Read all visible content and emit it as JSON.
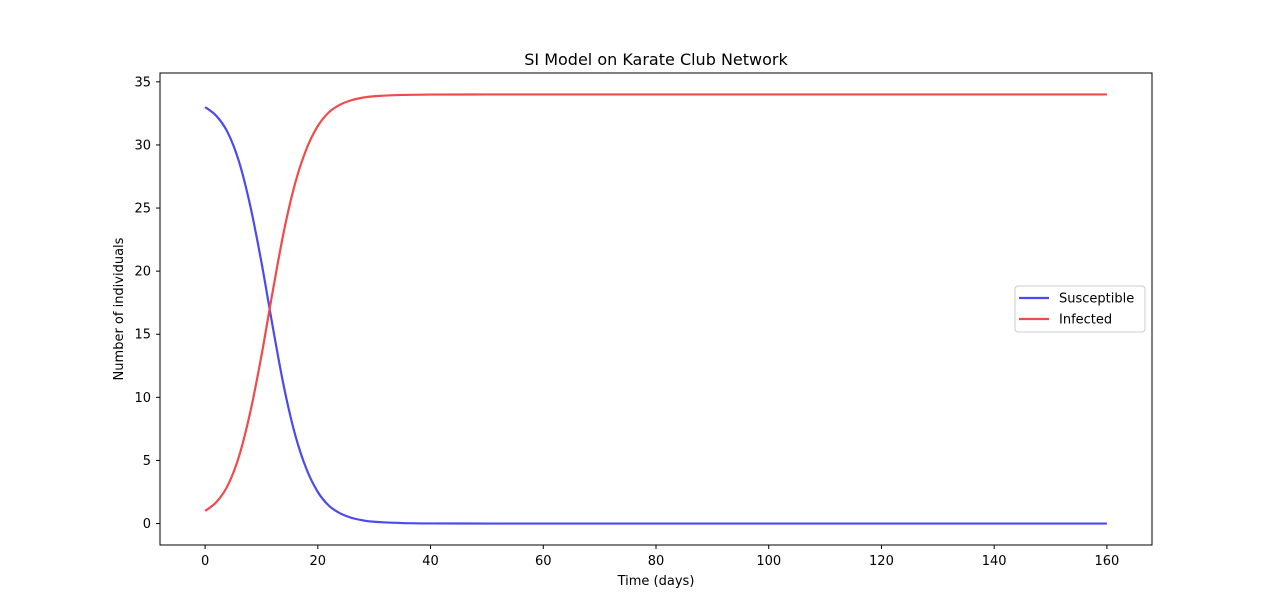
{
  "chart_data": {
    "type": "line",
    "title": "SI Model on Karate Club Network",
    "xlabel": "Time (days)",
    "ylabel": "Number of individuals",
    "xlim": [
      -8,
      168
    ],
    "ylim": [
      -1.7,
      35.7
    ],
    "xticks": [
      0,
      20,
      40,
      60,
      80,
      100,
      120,
      140,
      160
    ],
    "yticks": [
      0,
      5,
      10,
      15,
      20,
      25,
      30,
      35
    ],
    "grid": false,
    "legend_position": "center-right",
    "series": [
      {
        "name": "Susceptible",
        "color": "#4a4af0",
        "x": [
          0,
          2,
          4,
          6,
          8,
          10,
          12,
          14,
          16,
          18,
          20,
          22,
          24,
          26,
          28,
          30,
          35,
          40,
          50,
          60,
          80,
          100,
          120,
          140,
          160
        ],
        "y": [
          33.0,
          32.3,
          31.0,
          28.7,
          25.2,
          20.7,
          15.6,
          10.8,
          7.0,
          4.3,
          2.5,
          1.4,
          0.8,
          0.45,
          0.25,
          0.14,
          0.04,
          0.01,
          0.0,
          0.0,
          0.0,
          0.0,
          0.0,
          0.0,
          0.0
        ]
      },
      {
        "name": "Infected",
        "color": "#f04a4a",
        "x": [
          0,
          2,
          4,
          6,
          8,
          10,
          12,
          14,
          16,
          18,
          20,
          22,
          24,
          26,
          28,
          30,
          35,
          40,
          50,
          60,
          80,
          100,
          120,
          140,
          160
        ],
        "y": [
          1.0,
          1.7,
          3.0,
          5.3,
          8.8,
          13.3,
          18.4,
          23.2,
          27.0,
          29.7,
          31.5,
          32.6,
          33.2,
          33.55,
          33.75,
          33.86,
          33.96,
          33.99,
          34.0,
          34.0,
          34.0,
          34.0,
          34.0,
          34.0,
          34.0
        ]
      }
    ]
  }
}
